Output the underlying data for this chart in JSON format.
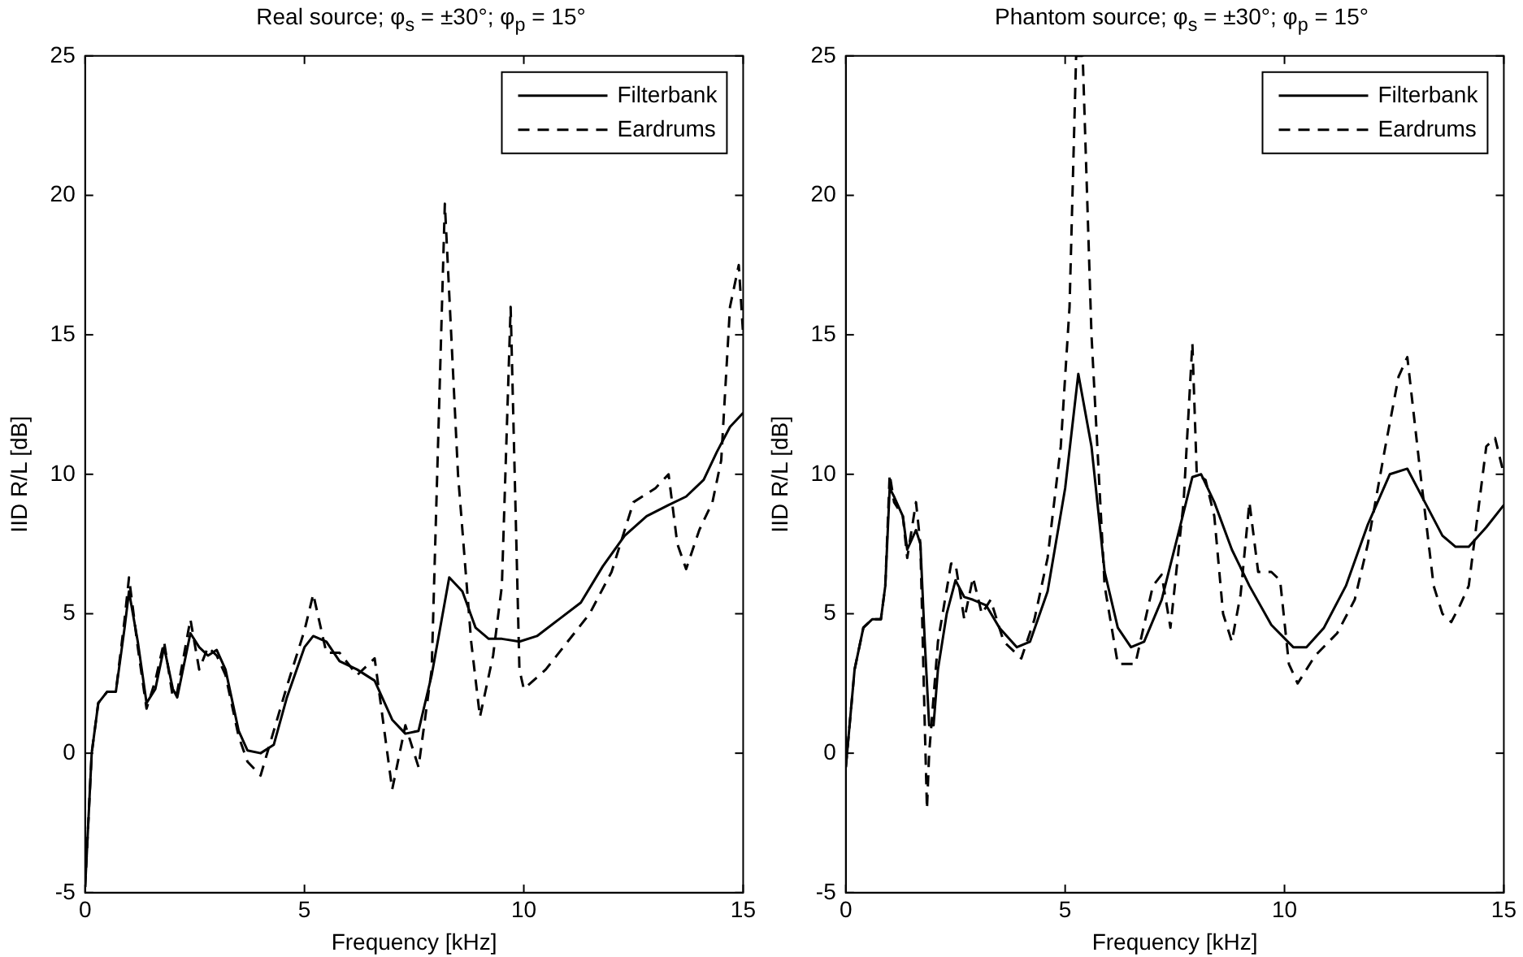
{
  "chart_data": [
    {
      "type": "line",
      "title": "Real source; φ$_{s}$ = ±30°; φ$_{p}$ = 15°",
      "xlabel": "Frequency [kHz]",
      "ylabel": "IID R/L [dB]",
      "xlim": [
        0,
        15
      ],
      "xticks": [
        0,
        5,
        10,
        15
      ],
      "ylim": [
        -5,
        25
      ],
      "yticks": [
        -5,
        0,
        5,
        10,
        15,
        20,
        25
      ],
      "grid": false,
      "legend": "top right",
      "series": [
        {
          "name": "Filterbank",
          "color": "#000000",
          "line_style": "solid",
          "x": [
            0,
            0.15,
            0.3,
            0.5,
            0.7,
            0.9,
            1.0,
            1.2,
            1.4,
            1.6,
            1.8,
            2.0,
            2.1,
            2.4,
            2.6,
            2.8,
            3.0,
            3.2,
            3.5,
            3.7,
            4.0,
            4.3,
            4.6,
            5.0,
            5.2,
            5.5,
            5.8,
            6.2,
            6.6,
            7.0,
            7.3,
            7.6,
            7.9,
            8.3,
            8.6,
            8.9,
            9.2,
            9.5,
            9.9,
            10.3,
            10.8,
            11.3,
            11.8,
            12.3,
            12.8,
            13.3,
            13.7,
            14.1,
            14.4,
            14.7,
            15
          ],
          "values": [
            -4.8,
            0,
            1.8,
            2.2,
            2.2,
            4.5,
            5.8,
            4,
            1.8,
            2.3,
            3.8,
            2.3,
            2.0,
            4.3,
            3.8,
            3.5,
            3.7,
            3.0,
            0.8,
            0.1,
            0,
            0.3,
            2,
            3.8,
            4.2,
            4.0,
            3.3,
            3.0,
            2.6,
            1.2,
            0.7,
            0.8,
            2.8,
            6.3,
            5.8,
            4.5,
            4.1,
            4.1,
            4.0,
            4.2,
            4.8,
            5.4,
            6.7,
            7.8,
            8.5,
            8.9,
            9.2,
            9.8,
            10.8,
            11.7,
            12.2
          ]
        },
        {
          "name": "Eardrums",
          "color": "#000000",
          "line_style": "dashed",
          "x": [
            0,
            0.15,
            0.3,
            0.5,
            0.7,
            0.9,
            1.0,
            1.2,
            1.4,
            1.6,
            1.8,
            2.0,
            2.1,
            2.4,
            2.6,
            2.8,
            3.0,
            3.2,
            3.5,
            3.7,
            4.0,
            4.3,
            4.6,
            5.0,
            5.2,
            5.5,
            5.8,
            6.2,
            6.6,
            7.0,
            7.3,
            7.6,
            7.9,
            8.2,
            8.5,
            8.8,
            9.0,
            9.3,
            9.5,
            9.7,
            9.9,
            10.0,
            10.5,
            11.0,
            11.5,
            12.0,
            12.5,
            13.0,
            13.3,
            13.5,
            13.7,
            14.0,
            14.3,
            14.5,
            14.7,
            14.9,
            15
          ],
          "values": [
            -4.8,
            0,
            1.8,
            2.2,
            2.2,
            4.8,
            6.3,
            3.8,
            1.6,
            2.6,
            4.0,
            2.0,
            2.2,
            4.8,
            3.0,
            3.8,
            3.5,
            2.8,
            0.6,
            -0.3,
            -0.8,
            0.8,
            2.4,
            4.4,
            5.7,
            3.6,
            3.6,
            2.8,
            3.4,
            -1.3,
            1.0,
            -0.5,
            3.0,
            19.7,
            10,
            4,
            1.3,
            3.5,
            6,
            16,
            3,
            2.3,
            3,
            4,
            5,
            6.5,
            9,
            9.5,
            10,
            7.5,
            6.6,
            8,
            9,
            10.5,
            16,
            17.5,
            15
          ]
        }
      ]
    },
    {
      "type": "line",
      "title": "Phantom source; φ$_{s}$ = ±30°; φ$_{p}$ = 15°",
      "xlabel": "Frequency [kHz]",
      "ylabel": "IID R/L [dB]",
      "xlim": [
        0,
        15
      ],
      "xticks": [
        0,
        5,
        10,
        15
      ],
      "ylim": [
        -5,
        25
      ],
      "yticks": [
        -5,
        0,
        5,
        10,
        15,
        20,
        25
      ],
      "grid": false,
      "legend": "top right",
      "series": [
        {
          "name": "Filterbank",
          "color": "#000000",
          "line_style": "solid",
          "x": [
            0,
            0.2,
            0.4,
            0.6,
            0.8,
            0.9,
            1.0,
            1.1,
            1.3,
            1.4,
            1.6,
            1.7,
            1.8,
            1.9,
            2.0,
            2.1,
            2.3,
            2.5,
            2.7,
            2.9,
            3.2,
            3.5,
            3.9,
            4.2,
            4.6,
            5.0,
            5.3,
            5.6,
            5.9,
            6.2,
            6.5,
            6.8,
            7.2,
            7.6,
            7.9,
            8.1,
            8.4,
            8.8,
            9.2,
            9.7,
            10.2,
            10.5,
            10.9,
            11.4,
            11.9,
            12.4,
            12.8,
            13.2,
            13.6,
            13.9,
            14.2,
            14.6,
            15
          ],
          "values": [
            -0.5,
            3,
            4.5,
            4.8,
            4.8,
            6,
            9.5,
            9.2,
            8.5,
            7.3,
            8.0,
            7.5,
            4,
            1,
            1.0,
            3,
            5,
            6.2,
            5.6,
            5.5,
            5.3,
            4.5,
            3.8,
            4.0,
            5.8,
            9.5,
            13.6,
            11,
            6.5,
            4.5,
            3.8,
            4.0,
            5.5,
            8,
            9.9,
            10.0,
            9.0,
            7.3,
            6.0,
            4.6,
            3.8,
            3.8,
            4.5,
            6,
            8.2,
            10.0,
            10.2,
            9.0,
            7.8,
            7.4,
            7.4,
            8.1,
            8.9
          ]
        },
        {
          "name": "Eardrums",
          "color": "#000000",
          "line_style": "dashed",
          "x": [
            0,
            0.2,
            0.4,
            0.6,
            0.8,
            0.9,
            1.0,
            1.1,
            1.3,
            1.4,
            1.6,
            1.7,
            1.8,
            1.85,
            1.9,
            2.1,
            2.4,
            2.5,
            2.7,
            2.9,
            3.1,
            3.3,
            3.6,
            4.0,
            4.3,
            4.6,
            4.9,
            5.1,
            5.25,
            5.4,
            5.6,
            5.9,
            6.2,
            6.6,
            7.0,
            7.2,
            7.4,
            7.7,
            7.9,
            8.0,
            8.2,
            8.4,
            8.6,
            8.8,
            9.0,
            9.2,
            9.4,
            9.7,
            9.9,
            10.1,
            10.3,
            10.7,
            11.2,
            11.6,
            11.9,
            12.3,
            12.6,
            12.8,
            13.1,
            13.4,
            13.6,
            13.8,
            14.0,
            14.2,
            14.4,
            14.6,
            14.8,
            15
          ],
          "values": [
            -0.5,
            3,
            4.5,
            4.8,
            4.8,
            6,
            10,
            9,
            8.5,
            7,
            9,
            7.5,
            1,
            -2,
            0,
            4,
            6.8,
            6.8,
            4.8,
            6.3,
            5.0,
            5.5,
            4,
            3.4,
            4.8,
            7,
            11,
            16,
            25,
            25,
            15,
            6,
            3.2,
            3.2,
            6,
            6.4,
            4.5,
            9,
            14.7,
            10,
            9.8,
            8.5,
            5,
            4.0,
            5.7,
            9.0,
            6.5,
            6.5,
            6.2,
            3.2,
            2.5,
            3.5,
            4.3,
            5.5,
            7.5,
            11,
            13.5,
            14.2,
            10,
            6,
            5,
            4.7,
            5.3,
            6,
            8.5,
            11,
            11.3,
            10
          ]
        }
      ]
    }
  ]
}
